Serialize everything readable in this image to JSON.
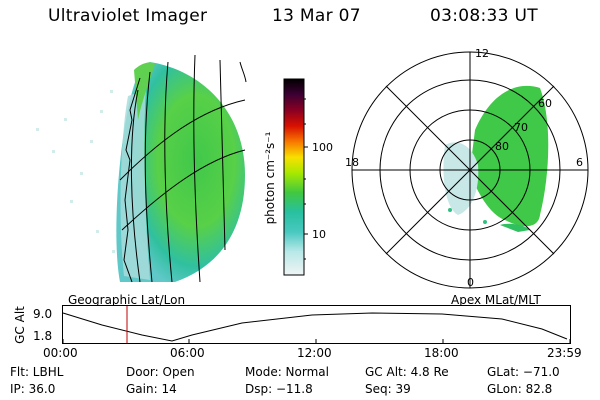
{
  "header": {
    "instrument": "Ultraviolet Imager",
    "date": "13 Mar 07",
    "time": "03:08:33 UT"
  },
  "colorbar": {
    "unit_label": "photon cm⁻²s⁻¹",
    "ticks": [
      "100",
      "10"
    ],
    "colors": [
      "#000000",
      "#1a001a",
      "#3d0033",
      "#600033",
      "#8a0022",
      "#b00000",
      "#d81000",
      "#f04000",
      "#f87800",
      "#f8b000",
      "#f8e000",
      "#d8f000",
      "#a8e800",
      "#70d800",
      "#40c840",
      "#28c070",
      "#28c0a0",
      "#48c8c0",
      "#80d8d8",
      "#b8e8e8",
      "#e8f0f0"
    ]
  },
  "left_panel": {
    "label": "Geographic Lat/Lon"
  },
  "right_panel": {
    "label": "Apex MLat/MLT",
    "mlt_labels": {
      "top": "12",
      "left": "18",
      "right": "6",
      "bottom": "0"
    },
    "lat_labels": [
      "60",
      "70",
      "80"
    ]
  },
  "altitude_plot": {
    "ylabel": "GC Alt",
    "ytick_high": "9.0",
    "ytick_low": "1.8",
    "xticks": [
      "00:00",
      "06:00",
      "12:00",
      "18:00",
      "23:59"
    ],
    "current_time_marker_color": "#c00000"
  },
  "info": {
    "flt": "Flt: LBHL",
    "ip": "IP: 36.0",
    "door": "Door: Open",
    "gain": "Gain: 14",
    "mode": "Mode: Normal",
    "dsp": "Dsp:  −11.8",
    "gc_alt": "GC Alt: 4.8 Re",
    "seq": "Seq: 39",
    "glat": "GLat: −71.0",
    "glon": "GLon:  82.8"
  }
}
